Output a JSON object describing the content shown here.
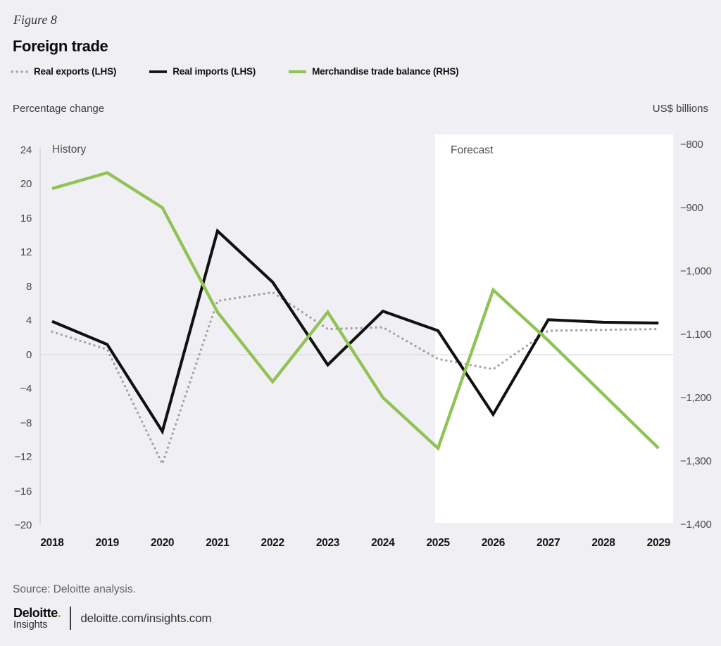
{
  "figure_label": "Figure 8",
  "title": "Foreign trade",
  "legend": [
    {
      "label": "Real exports (LHS)",
      "style": "dotted",
      "color": "#a3a3a3"
    },
    {
      "label": "Real imports (LHS)",
      "style": "solid",
      "color": "#111111"
    },
    {
      "label": "Merchandise trade balance (RHS)",
      "style": "solid",
      "color": "#90c355"
    }
  ],
  "regions": {
    "history": "History",
    "forecast": "Forecast"
  },
  "source": "Source: Deloitte analysis.",
  "footer": {
    "brand_name": "Deloitte",
    "brand_dot": ".",
    "brand_secondary": "Insights",
    "url": "deloitte.com/insights.com",
    "accent_green": "#86bc25"
  },
  "chart_data": {
    "type": "line",
    "title": "Foreign trade",
    "x": [
      "2018",
      "2019",
      "2020",
      "2021",
      "2022",
      "2023",
      "2024",
      "2025",
      "2026",
      "2027",
      "2028",
      "2029"
    ],
    "series": [
      {
        "name": "Real exports (LHS)",
        "axis": "left",
        "line_style": "dotted",
        "color": "#a3a3a3",
        "values": [
          2.7,
          0.6,
          -12.8,
          6.3,
          7.3,
          3.0,
          3.2,
          -0.5,
          -1.7,
          2.8,
          2.9,
          3.0
        ]
      },
      {
        "name": "Real imports (LHS)",
        "axis": "left",
        "line_style": "solid",
        "color": "#111111",
        "values": [
          3.9,
          1.2,
          -9.0,
          14.5,
          8.5,
          -1.2,
          5.1,
          2.8,
          -7.0,
          4.1,
          3.8,
          3.7
        ]
      },
      {
        "name": "Merchandise trade balance (RHS)",
        "axis": "right",
        "line_style": "solid",
        "color": "#90c355",
        "values": [
          -870,
          -845,
          -900,
          -1065,
          -1175,
          -1065,
          -1200,
          -1280,
          -1030,
          -1110,
          -1195,
          -1280
        ]
      }
    ],
    "left_axis": {
      "label": "Percentage change",
      "range": [
        -20,
        24
      ],
      "tick_values": [
        24,
        20,
        16,
        12,
        8,
        4,
        0,
        -4,
        -8,
        -12,
        -16,
        -20
      ],
      "tick_labels": [
        "24",
        "20",
        "16",
        "12",
        "8",
        "4",
        "0",
        "−4",
        "−8",
        "−12",
        "−16",
        "−20"
      ]
    },
    "right_axis": {
      "label": "US$ billions",
      "range": [
        -1400,
        -800
      ],
      "tick_values": [
        -800,
        -900,
        -1000,
        -1100,
        -1200,
        -1300,
        -1400
      ],
      "tick_labels": [
        "−800",
        "−900",
        "−1,000",
        "−1,100",
        "−1,200",
        "−1,300",
        "−1,400"
      ]
    },
    "forecast_region": {
      "label": "Forecast",
      "from_x": "2025",
      "to_x": "2029"
    },
    "history_region": {
      "label": "History"
    },
    "grid": "zero-line-only",
    "legend_position": "top-left"
  }
}
